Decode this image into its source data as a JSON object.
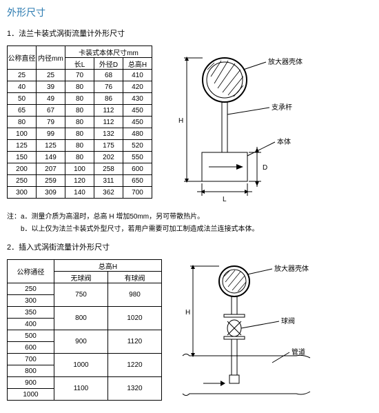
{
  "pageTitle": "外形尺寸",
  "section1": {
    "title": "1．法兰卡装式涡街流量计外形尺寸",
    "table": {
      "headers": {
        "col1": "公称直径",
        "col2": "内径mm",
        "colGroup": "卡装式本体尺寸mm",
        "sub1": "长L",
        "sub2": "外径D",
        "sub3": "总高H"
      },
      "rows": [
        [
          "25",
          "25",
          "70",
          "68",
          "410"
        ],
        [
          "40",
          "39",
          "80",
          "76",
          "420"
        ],
        [
          "50",
          "49",
          "80",
          "86",
          "430"
        ],
        [
          "65",
          "67",
          "80",
          "112",
          "450"
        ],
        [
          "80",
          "79",
          "80",
          "112",
          "450"
        ],
        [
          "100",
          "99",
          "80",
          "132",
          "480"
        ],
        [
          "125",
          "125",
          "80",
          "175",
          "520"
        ],
        [
          "150",
          "149",
          "80",
          "202",
          "550"
        ],
        [
          "200",
          "207",
          "100",
          "258",
          "600"
        ],
        [
          "250",
          "259",
          "120",
          "311",
          "650"
        ],
        [
          "300",
          "309",
          "140",
          "362",
          "700"
        ]
      ]
    },
    "notes": {
      "a": "注：a．测量介质为高温时，总高 H 增加50mm，另可带散热片。",
      "b": "　　b．以上仅为法兰卡装式外型尺寸，若用户需要可加工制造成法兰连接式本体。"
    },
    "diagram": {
      "labels": {
        "amplifier": "放大器壳体",
        "support": "支承杆",
        "body": "本体",
        "L": "L",
        "H": "H",
        "D": "D"
      },
      "colors": {
        "stroke": "#000",
        "bg": "#fff"
      }
    }
  },
  "section2": {
    "title": "2．插入式涡街流量计外形尺寸",
    "table": {
      "headers": {
        "col1": "公称通径",
        "colGroup": "总高H",
        "sub1": "无球阀",
        "sub2": "有球阀"
      },
      "rows": [
        {
          "dn": "250",
          "noValve": "750",
          "withValve": "980",
          "span": 2
        },
        {
          "dn": "300"
        },
        {
          "dn": "350",
          "noValve": "800",
          "withValve": "1020",
          "span": 2
        },
        {
          "dn": "400"
        },
        {
          "dn": "500",
          "noValve": "900",
          "withValve": "1120",
          "span": 2
        },
        {
          "dn": "600"
        },
        {
          "dn": "700",
          "noValve": "1000",
          "withValve": "1220",
          "span": 2
        },
        {
          "dn": "800"
        },
        {
          "dn": "900",
          "noValve": "1100",
          "withValve": "1320",
          "span": 2
        },
        {
          "dn": "1000"
        }
      ]
    },
    "diagram": {
      "labels": {
        "amplifier": "放大器壳体",
        "valve": "球阀",
        "pipe": "管道",
        "H": "H"
      },
      "colors": {
        "stroke": "#000",
        "bg": "#fff"
      }
    }
  }
}
